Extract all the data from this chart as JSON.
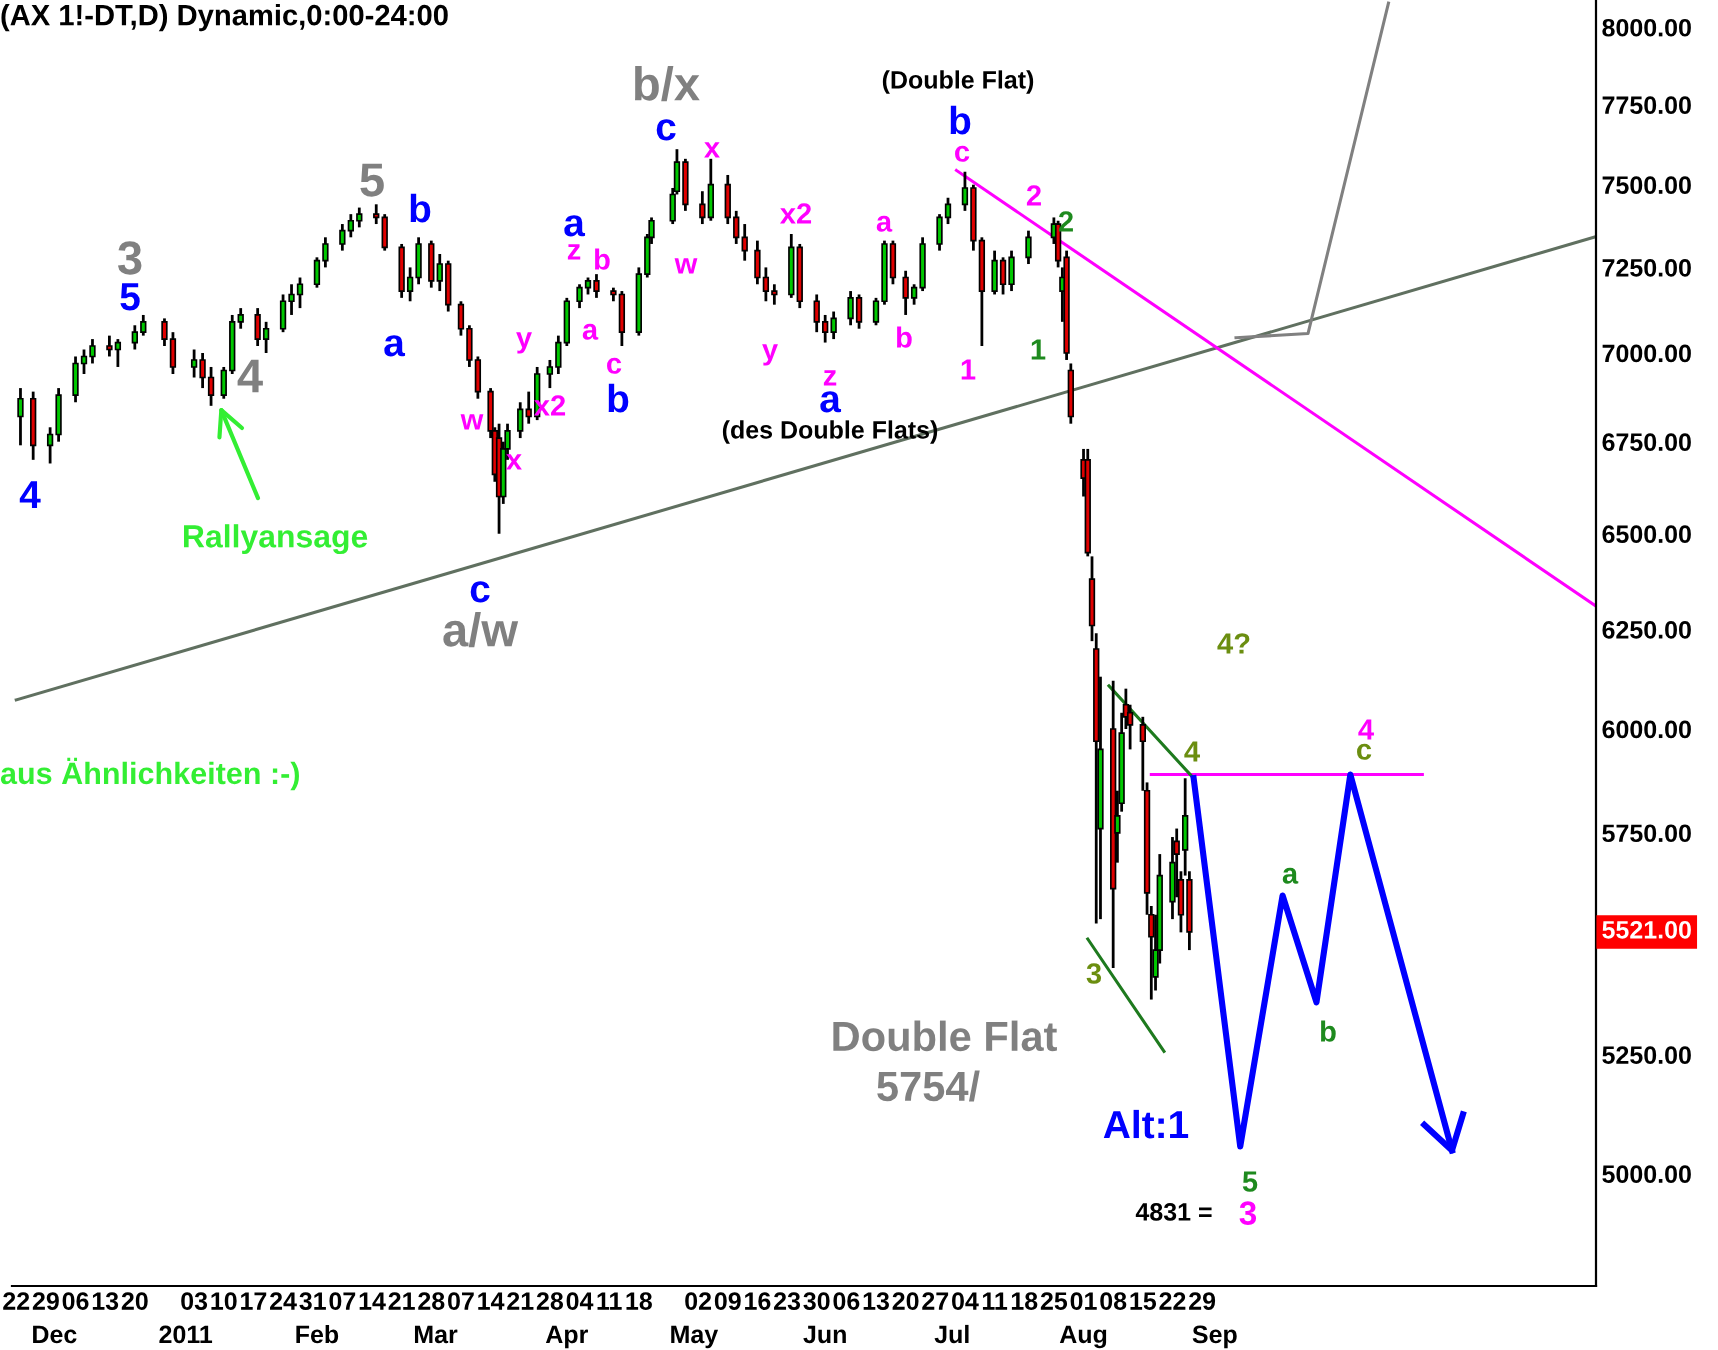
{
  "chart_data": {
    "type": "candlestick",
    "title": "(AX 1!-DT,D) Dynamic,0:00-24:00",
    "log": "y",
    "ylim": [
      4775,
      8090
    ],
    "xlim": [
      "2010-11-21",
      "2011-11-30"
    ],
    "yticks": [
      {
        "value": 8000,
        "label": "8000.00"
      },
      {
        "value": 7750,
        "label": "7750.00"
      },
      {
        "value": 7500,
        "label": "7500.00"
      },
      {
        "value": 7250,
        "label": "7250.00"
      },
      {
        "value": 7000,
        "label": "7000.00"
      },
      {
        "value": 6750,
        "label": "6750.00"
      },
      {
        "value": 6500,
        "label": "6500.00"
      },
      {
        "value": 6250,
        "label": "6250.00"
      },
      {
        "value": 6000,
        "label": "6000.00"
      },
      {
        "value": 5750,
        "label": "5750.00"
      },
      {
        "value": 5250,
        "label": "5250.00"
      },
      {
        "value": 5000,
        "label": "5000.00"
      }
    ],
    "xticks": [
      {
        "value": "2010-11-22",
        "label": "22"
      },
      {
        "value": "2010-11-29",
        "label": "29"
      },
      {
        "value": "2010-12-06",
        "label": "06"
      },
      {
        "value": "2010-12-13",
        "label": "13"
      },
      {
        "value": "2010-12-20",
        "label": "20"
      },
      {
        "value": "2011-01-03",
        "label": "03"
      },
      {
        "value": "2011-01-10",
        "label": "10"
      },
      {
        "value": "2011-01-17",
        "label": "17"
      },
      {
        "value": "2011-01-24",
        "label": "24"
      },
      {
        "value": "2011-01-31",
        "label": "31"
      },
      {
        "value": "2011-02-07",
        "label": "07"
      },
      {
        "value": "2011-02-14",
        "label": "14"
      },
      {
        "value": "2011-02-21",
        "label": "21"
      },
      {
        "value": "2011-02-28",
        "label": "28"
      },
      {
        "value": "2011-03-07",
        "label": "07"
      },
      {
        "value": "2011-03-14",
        "label": "14"
      },
      {
        "value": "2011-03-21",
        "label": "21"
      },
      {
        "value": "2011-03-28",
        "label": "28"
      },
      {
        "value": "2011-04-04",
        "label": "04"
      },
      {
        "value": "2011-04-11",
        "label": "11"
      },
      {
        "value": "2011-04-18",
        "label": "18"
      },
      {
        "value": "2011-05-02",
        "label": "02"
      },
      {
        "value": "2011-05-09",
        "label": "09"
      },
      {
        "value": "2011-05-16",
        "label": "16"
      },
      {
        "value": "2011-05-23",
        "label": "23"
      },
      {
        "value": "2011-05-30",
        "label": "30"
      },
      {
        "value": "2011-06-06",
        "label": "06"
      },
      {
        "value": "2011-06-13",
        "label": "13"
      },
      {
        "value": "2011-06-20",
        "label": "20"
      },
      {
        "value": "2011-06-27",
        "label": "27"
      },
      {
        "value": "2011-07-04",
        "label": "04"
      },
      {
        "value": "2011-07-11",
        "label": "11"
      },
      {
        "value": "2011-07-18",
        "label": "18"
      },
      {
        "value": "2011-07-25",
        "label": "25"
      },
      {
        "value": "2011-08-01",
        "label": "01"
      },
      {
        "value": "2011-08-08",
        "label": "08"
      },
      {
        "value": "2011-08-15",
        "label": "15"
      },
      {
        "value": "2011-08-22",
        "label": "22"
      },
      {
        "value": "2011-08-29",
        "label": "29"
      }
    ],
    "x2lim": [
      "2010-11-21",
      "2011-11-30"
    ],
    "x2ticks": [
      {
        "value": "2010-12-01",
        "label": "Dec"
      },
      {
        "value": "2011-01-01",
        "label": "2011"
      },
      {
        "value": "2011-02-01",
        "label": "Feb"
      },
      {
        "value": "2011-03-01",
        "label": "Mar"
      },
      {
        "value": "2011-04-01",
        "label": "Apr"
      },
      {
        "value": "2011-05-01",
        "label": "May"
      },
      {
        "value": "2011-06-01",
        "label": "Jun"
      },
      {
        "value": "2011-07-01",
        "label": "Jul"
      },
      {
        "value": "2011-08-01",
        "label": "Aug"
      },
      {
        "value": "2011-09-01",
        "label": "Sep"
      }
    ],
    "colors": [
      "#00c800",
      "#e00000"
    ],
    "series": [
      {
        "type": "line",
        "color": "#607060",
        "x": [
          "2010-11-22",
          "2011-11-30"
        ],
        "values": [
          6072,
          7342
        ]
      },
      {
        "type": "line",
        "color": "#ff00ff",
        "x": [
          "2011-07-02",
          "2011-11-30"
        ],
        "values": [
          7544,
          6310
        ]
      },
      {
        "type": "line",
        "color": "#ff00ff",
        "x": [
          "2011-08-17",
          "2011-10-20"
        ],
        "values": [
          5889,
          5889
        ]
      },
      {
        "type": "line",
        "color": "#1e7a1e",
        "x": [
          "2011-08-07",
          "2011-08-27"
        ],
        "values": [
          6107,
          5880
        ]
      },
      {
        "type": "line",
        "color": "#1e7a1e",
        "x": [
          "2011-08-02",
          "2011-08-20"
        ],
        "values": [
          5505,
          5257
        ]
      },
      {
        "type": "line",
        "color": "#808080",
        "x": [
          "2011-09-06",
          "2011-09-23",
          "2011-10-12"
        ],
        "values": [
          7044,
          7056,
          8080
        ]
      },
      {
        "type": "line",
        "color": "#0000ff",
        "x": [
          "2011-08-27",
          "2011-09-07",
          "2011-09-17",
          "2011-09-25",
          "2011-10-03",
          "2011-10-27"
        ],
        "values": [
          5880,
          5056,
          5604,
          5364,
          5889,
          5048
        ]
      },
      {
        "x": [
          "2010-11-23",
          "2010-11-26",
          "2010-11-30",
          "2010-12-02",
          "2010-12-06",
          "2010-12-08",
          "2010-12-10",
          "2010-12-14",
          "2010-12-16",
          "2010-12-20",
          "2010-12-22",
          "2010-12-27",
          "2010-12-29",
          "2011-01-03",
          "2011-01-05",
          "2011-01-07",
          "2011-01-10",
          "2011-01-12",
          "2011-01-14",
          "2011-01-18",
          "2011-01-20",
          "2011-01-24",
          "2011-01-26",
          "2011-01-28",
          "2011-02-01",
          "2011-02-03",
          "2011-02-07",
          "2011-02-09",
          "2011-02-11",
          "2011-02-15",
          "2011-02-17",
          "2011-02-21",
          "2011-02-23",
          "2011-02-25",
          "2011-02-28",
          "2011-03-02",
          "2011-03-04",
          "2011-03-07",
          "2011-03-09",
          "2011-03-11",
          "2011-03-14",
          "2011-03-15",
          "2011-03-16",
          "2011-03-17",
          "2011-03-18",
          "2011-03-21",
          "2011-03-23",
          "2011-03-25",
          "2011-03-28",
          "2011-03-30",
          "2011-04-01",
          "2011-04-04",
          "2011-04-06",
          "2011-04-08",
          "2011-04-12",
          "2011-04-14",
          "2011-04-18",
          "2011-04-20",
          "2011-04-21",
          "2011-04-26",
          "2011-04-27",
          "2011-04-29",
          "2011-05-03",
          "2011-05-05",
          "2011-05-09",
          "2011-05-11",
          "2011-05-13",
          "2011-05-16",
          "2011-05-18",
          "2011-05-20",
          "2011-05-24",
          "2011-05-26",
          "2011-05-30",
          "2011-06-01",
          "2011-06-03",
          "2011-06-07",
          "2011-06-09",
          "2011-06-13",
          "2011-06-15",
          "2011-06-17",
          "2011-06-20",
          "2011-06-22",
          "2011-06-24",
          "2011-06-28",
          "2011-06-30",
          "2011-07-04",
          "2011-07-06",
          "2011-07-08",
          "2011-07-11",
          "2011-07-13",
          "2011-07-15",
          "2011-07-19",
          "2011-07-25",
          "2011-07-26",
          "2011-07-27",
          "2011-07-28",
          "2011-07-29",
          "2011-08-01",
          "2011-08-02",
          "2011-08-03",
          "2011-08-04",
          "2011-08-05",
          "2011-08-08",
          "2011-08-09",
          "2011-08-10",
          "2011-08-11",
          "2011-08-12",
          "2011-08-15",
          "2011-08-16",
          "2011-08-17",
          "2011-08-18",
          "2011-08-19",
          "2011-08-22",
          "2011-08-23",
          "2011-08-24",
          "2011-08-25",
          "2011-08-26"
        ],
        "ohlc": [
          [
            6820,
            6900,
            6740,
            6870
          ],
          [
            6870,
            6890,
            6700,
            6740
          ],
          [
            6740,
            6790,
            6690,
            6770
          ],
          [
            6770,
            6900,
            6750,
            6880
          ],
          [
            6880,
            6990,
            6860,
            6970
          ],
          [
            6970,
            7010,
            6940,
            6990
          ],
          [
            6990,
            7040,
            6970,
            7020
          ],
          [
            7020,
            7050,
            6990,
            7010
          ],
          [
            7010,
            7040,
            6960,
            7030
          ],
          [
            7030,
            7080,
            7010,
            7060
          ],
          [
            7060,
            7110,
            7050,
            7090
          ],
          [
            7090,
            7100,
            7020,
            7040
          ],
          [
            7040,
            7060,
            6940,
            6960
          ],
          [
            6960,
            7010,
            6930,
            6980
          ],
          [
            6980,
            7000,
            6900,
            6930
          ],
          [
            6930,
            6960,
            6850,
            6880
          ],
          [
            6880,
            6960,
            6870,
            6950
          ],
          [
            6950,
            7110,
            6940,
            7090
          ],
          [
            7090,
            7130,
            7070,
            7110
          ],
          [
            7110,
            7130,
            7020,
            7040
          ],
          [
            7040,
            7090,
            7000,
            7070
          ],
          [
            7070,
            7170,
            7060,
            7150
          ],
          [
            7150,
            7200,
            7110,
            7170
          ],
          [
            7170,
            7220,
            7130,
            7200
          ],
          [
            7200,
            7280,
            7190,
            7270
          ],
          [
            7270,
            7340,
            7250,
            7320
          ],
          [
            7320,
            7380,
            7300,
            7360
          ],
          [
            7360,
            7410,
            7340,
            7390
          ],
          [
            7390,
            7430,
            7370,
            7410
          ],
          [
            7410,
            7440,
            7380,
            7400
          ],
          [
            7400,
            7410,
            7300,
            7310
          ],
          [
            7310,
            7320,
            7160,
            7180
          ],
          [
            7180,
            7250,
            7150,
            7220
          ],
          [
            7220,
            7340,
            7200,
            7320
          ],
          [
            7320,
            7330,
            7190,
            7210
          ],
          [
            7210,
            7290,
            7180,
            7260
          ],
          [
            7260,
            7270,
            7120,
            7140
          ],
          [
            7140,
            7150,
            7050,
            7070
          ],
          [
            7070,
            7080,
            6960,
            6980
          ],
          [
            6980,
            6990,
            6870,
            6890
          ],
          [
            6890,
            6900,
            6760,
            6780
          ],
          [
            6780,
            6790,
            6640,
            6660
          ],
          [
            6760,
            6800,
            6500,
            6600
          ],
          [
            6600,
            6750,
            6580,
            6730
          ],
          [
            6730,
            6800,
            6700,
            6780
          ],
          [
            6780,
            6860,
            6760,
            6840
          ],
          [
            6840,
            6890,
            6800,
            6820
          ],
          [
            6820,
            6960,
            6810,
            6940
          ],
          [
            6940,
            6980,
            6900,
            6960
          ],
          [
            6960,
            7050,
            6940,
            7030
          ],
          [
            7030,
            7160,
            7020,
            7150
          ],
          [
            7150,
            7200,
            7130,
            7190
          ],
          [
            7190,
            7220,
            7170,
            7210
          ],
          [
            7210,
            7230,
            7160,
            7180
          ],
          [
            7180,
            7190,
            7150,
            7170
          ],
          [
            7170,
            7180,
            7020,
            7060
          ],
          [
            7060,
            7250,
            7050,
            7230
          ],
          [
            7230,
            7350,
            7220,
            7340
          ],
          [
            7340,
            7400,
            7320,
            7390
          ],
          [
            7390,
            7490,
            7380,
            7470
          ],
          [
            7480,
            7610,
            7470,
            7570
          ],
          [
            7570,
            7580,
            7420,
            7440
          ],
          [
            7440,
            7480,
            7380,
            7400
          ],
          [
            7400,
            7580,
            7390,
            7500
          ],
          [
            7500,
            7530,
            7380,
            7400
          ],
          [
            7400,
            7420,
            7320,
            7340
          ],
          [
            7340,
            7380,
            7270,
            7300
          ],
          [
            7300,
            7330,
            7200,
            7220
          ],
          [
            7220,
            7250,
            7150,
            7180
          ],
          [
            7180,
            7200,
            7140,
            7170
          ],
          [
            7170,
            7350,
            7160,
            7310
          ],
          [
            7310,
            7320,
            7130,
            7150
          ],
          [
            7150,
            7170,
            7060,
            7090
          ],
          [
            7090,
            7110,
            7030,
            7060
          ],
          [
            7060,
            7120,
            7040,
            7100
          ],
          [
            7100,
            7180,
            7080,
            7160
          ],
          [
            7160,
            7170,
            7070,
            7090
          ],
          [
            7090,
            7160,
            7080,
            7150
          ],
          [
            7150,
            7330,
            7140,
            7320
          ],
          [
            7320,
            7330,
            7200,
            7220
          ],
          [
            7220,
            7240,
            7110,
            7160
          ],
          [
            7160,
            7200,
            7140,
            7190
          ],
          [
            7190,
            7340,
            7180,
            7320
          ],
          [
            7320,
            7410,
            7300,
            7400
          ],
          [
            7400,
            7460,
            7380,
            7440
          ],
          [
            7440,
            7540,
            7420,
            7490
          ],
          [
            7490,
            7500,
            7300,
            7330
          ],
          [
            7330,
            7340,
            7020,
            7180
          ],
          [
            7180,
            7300,
            7170,
            7270
          ],
          [
            7270,
            7280,
            7170,
            7200
          ],
          [
            7200,
            7300,
            7180,
            7280
          ],
          [
            7280,
            7360,
            7260,
            7340
          ],
          [
            7340,
            7400,
            7320,
            7380
          ],
          [
            7380,
            7390,
            7250,
            7270
          ],
          [
            7180,
            7250,
            7090,
            7220
          ],
          [
            7280,
            7300,
            6980,
            7000
          ],
          [
            6950,
            6970,
            6800,
            6820
          ],
          [
            6700,
            6730,
            6600,
            6650
          ],
          [
            6700,
            6730,
            6440,
            6450
          ],
          [
            6380,
            6440,
            6220,
            6260
          ],
          [
            6200,
            6240,
            5540,
            5970
          ],
          [
            5760,
            6130,
            5550,
            5950
          ],
          [
            6000,
            6120,
            5440,
            5620
          ],
          [
            5750,
            5850,
            5680,
            5790
          ],
          [
            5820,
            6040,
            5800,
            5990
          ],
          [
            6060,
            6100,
            6000,
            6030
          ],
          [
            6040,
            6060,
            5950,
            6010
          ],
          [
            6010,
            6030,
            5850,
            5970
          ],
          [
            5850,
            5870,
            5560,
            5610
          ],
          [
            5560,
            5580,
            5370,
            5510
          ],
          [
            5420,
            5560,
            5390,
            5480
          ],
          [
            5480,
            5700,
            5450,
            5650
          ],
          [
            5590,
            5740,
            5550,
            5680
          ],
          [
            5730,
            5760,
            5600,
            5700
          ],
          [
            5640,
            5660,
            5520,
            5560
          ],
          [
            5710,
            5880,
            5650,
            5790
          ],
          [
            5640,
            5660,
            5480,
            5521
          ]
        ]
      }
    ],
    "annotations": [
      "4",
      "3",
      "5",
      "4",
      {
        "text": "Rallyansage",
        "x": "2011-01-09",
        "y": 6850
      },
      "5",
      "b",
      "a",
      "w",
      "x",
      "x2",
      "y",
      "z",
      "a",
      "b",
      "a",
      "c",
      "b",
      "c",
      "a/w",
      "b/x",
      "c",
      "x",
      "w",
      "y",
      "x2",
      "z",
      "a",
      "(des Double Flats)",
      "a",
      "b",
      "(Double Flat)",
      "b",
      "c",
      "1",
      "2",
      "2",
      "1",
      "4?",
      "4",
      "3",
      "4",
      "c",
      "a",
      "b",
      "5",
      "3",
      "4831 =",
      "Alt:1",
      "Double Flat",
      "5754/",
      "aus Ähnlichkeiten :-)",
      "5521.00"
    ]
  }
}
